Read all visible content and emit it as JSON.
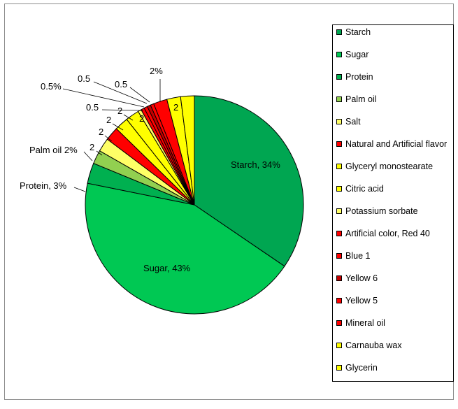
{
  "chart_data": {
    "type": "pie",
    "title": "",
    "slices": [
      {
        "name": "Starch",
        "value": 34,
        "label": "Starch, 34%",
        "color": "#00a651"
      },
      {
        "name": "Sugar",
        "value": 43,
        "label": "Sugar, 43%",
        "color": "#00c853"
      },
      {
        "name": "Protein",
        "value": 3,
        "label": "Protein, 3%",
        "color": "#00b050"
      },
      {
        "name": "Palm oil",
        "value": 2,
        "label": "Palm oil 2%",
        "color": "#92d050"
      },
      {
        "name": "Salt",
        "value": 2,
        "label": "2",
        "color": "#ffff66"
      },
      {
        "name": "Natural and Artificial flavor",
        "value": 2,
        "label": "2",
        "color": "#ff0000"
      },
      {
        "name": "Glyceryl monostearate",
        "value": 2,
        "label": "2",
        "color": "#ffff00"
      },
      {
        "name": "Citric acid",
        "value": 2,
        "label": "2",
        "color": "#ffff00"
      },
      {
        "name": "Potassium sorbate",
        "value": 0.5,
        "label": "0.5",
        "color": "#ffff66"
      },
      {
        "name": "Artificial color, Red 40",
        "value": 0.5,
        "label": "0.5%",
        "color": "#ff0000"
      },
      {
        "name": "Blue 1",
        "value": 0.5,
        "label": "0.5",
        "color": "#ff0000"
      },
      {
        "name": "Yellow 6",
        "value": 0.5,
        "label": "0.5",
        "color": "#c00000"
      },
      {
        "name": "Yellow 5",
        "value": 0.5,
        "label": "",
        "color": "#ff0000"
      },
      {
        "name": "Mineral oil",
        "value": 2,
        "label": "2%",
        "color": "#ff0000"
      },
      {
        "name": "Carnauba wax",
        "value": 2,
        "label": "2",
        "color": "#ffff00"
      },
      {
        "name": "Glycerin",
        "value": 2,
        "label": "2",
        "color": "#ffff00"
      }
    ],
    "legend_position": "right"
  },
  "legend": [
    {
      "label": "Starch",
      "color": "#00a651"
    },
    {
      "label": "Sugar",
      "color": "#00c853"
    },
    {
      "label": "Protein",
      "color": "#00b050"
    },
    {
      "label": "Palm oil",
      "color": "#92d050"
    },
    {
      "label": "Salt",
      "color": "#ffff66"
    },
    {
      "label": "Natural and Artificial flavor",
      "color": "#ff0000"
    },
    {
      "label": "Glyceryl monostearate",
      "color": "#ffff00"
    },
    {
      "label": "Citric acid",
      "color": "#ffff00"
    },
    {
      "label": "Potassium sorbate",
      "color": "#ffff66"
    },
    {
      "label": "Artificial color, Red 40",
      "color": "#ff0000"
    },
    {
      "label": "Blue 1",
      "color": "#ff0000"
    },
    {
      "label": "Yellow 6",
      "color": "#c00000"
    },
    {
      "label": "Yellow 5",
      "color": "#ff0000"
    },
    {
      "label": "Mineral oil",
      "color": "#ff0000"
    },
    {
      "label": "Carnauba wax",
      "color": "#ffff00"
    },
    {
      "label": "Glycerin",
      "color": "#ffff00"
    }
  ]
}
